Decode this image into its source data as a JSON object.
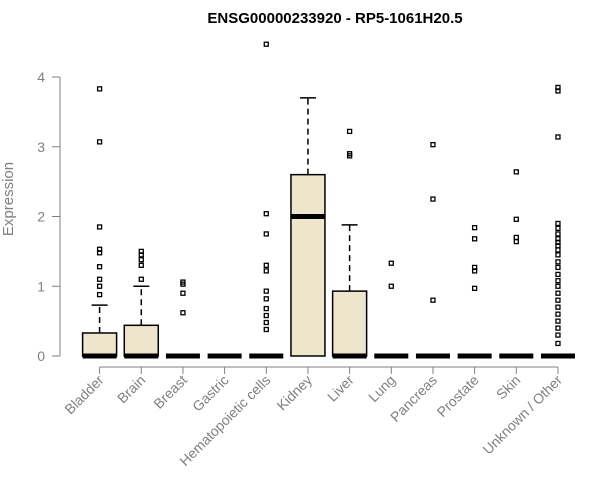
{
  "chart_data": {
    "type": "boxplot",
    "title": "ENSG00000233920 - RP5-1061H20.5",
    "xlabel": "",
    "ylabel": "Expression",
    "ylim": [
      0,
      4.6
    ],
    "yticks": [
      0,
      1,
      2,
      3,
      4
    ],
    "yticklabels": [
      "0",
      "1",
      "2",
      "3",
      "4"
    ],
    "box_color": "#ede6cd",
    "categories": [
      "Bladder",
      "Brain",
      "Breast",
      "Gastric",
      "Hematopoietic cells",
      "Kidney",
      "Liver",
      "Lung",
      "Pancreas",
      "Prostate",
      "Skin",
      "Unknown / Other"
    ],
    "boxes": [
      {
        "q1": 0,
        "median": 0,
        "q3": 0.33,
        "whisker_low": 0,
        "whisker_high": 0.73,
        "outliers": [
          0.88,
          1.0,
          1.1,
          1.28,
          1.48,
          1.53,
          1.85,
          3.07,
          3.83
        ]
      },
      {
        "q1": 0,
        "median": 0,
        "q3": 0.44,
        "whisker_low": 0,
        "whisker_high": 1.0,
        "outliers": [
          1.1,
          1.3,
          1.38,
          1.45,
          1.5
        ]
      },
      {
        "q1": 0,
        "median": 0,
        "q3": 0,
        "whisker_low": 0,
        "whisker_high": 0,
        "outliers": [
          0.62,
          0.9,
          1.03,
          1.06
        ]
      },
      {
        "q1": 0,
        "median": 0,
        "q3": 0,
        "whisker_low": 0,
        "whisker_high": 0,
        "outliers": []
      },
      {
        "q1": 0,
        "median": 0,
        "q3": 0,
        "whisker_low": 0,
        "whisker_high": 0,
        "outliers": [
          0.38,
          0.48,
          0.58,
          0.68,
          0.82,
          0.93,
          1.22,
          1.3,
          1.75,
          2.04,
          4.47
        ]
      },
      {
        "q1": 0,
        "median": 2.0,
        "q3": 2.6,
        "whisker_low": 0,
        "whisker_high": 3.7,
        "outliers": []
      },
      {
        "q1": 0,
        "median": 0,
        "q3": 0.93,
        "whisker_low": 0,
        "whisker_high": 1.88,
        "outliers": [
          2.87,
          2.9,
          3.22
        ]
      },
      {
        "q1": 0,
        "median": 0,
        "q3": 0,
        "whisker_low": 0,
        "whisker_high": 0,
        "outliers": [
          1.0,
          1.33
        ]
      },
      {
        "q1": 0,
        "median": 0,
        "q3": 0,
        "whisker_low": 0,
        "whisker_high": 0,
        "outliers": [
          0.8,
          2.25,
          3.03
        ]
      },
      {
        "q1": 0,
        "median": 0,
        "q3": 0,
        "whisker_low": 0,
        "whisker_high": 0,
        "outliers": [
          0.97,
          1.22,
          1.27,
          1.68,
          1.84
        ]
      },
      {
        "q1": 0,
        "median": 0,
        "q3": 0,
        "whisker_low": 0,
        "whisker_high": 0,
        "outliers": [
          1.64,
          1.7,
          1.96,
          2.64
        ]
      },
      {
        "q1": 0,
        "median": 0,
        "q3": 0,
        "whisker_low": 0,
        "whisker_high": 0,
        "outliers": [
          0.18,
          0.3,
          0.4,
          0.5,
          0.6,
          0.7,
          0.8,
          0.9,
          1.0,
          1.08,
          1.17,
          1.27,
          1.35,
          1.45,
          1.52,
          1.58,
          1.63,
          1.68,
          1.75,
          1.83,
          1.9,
          3.14,
          3.8,
          3.85
        ]
      }
    ]
  }
}
